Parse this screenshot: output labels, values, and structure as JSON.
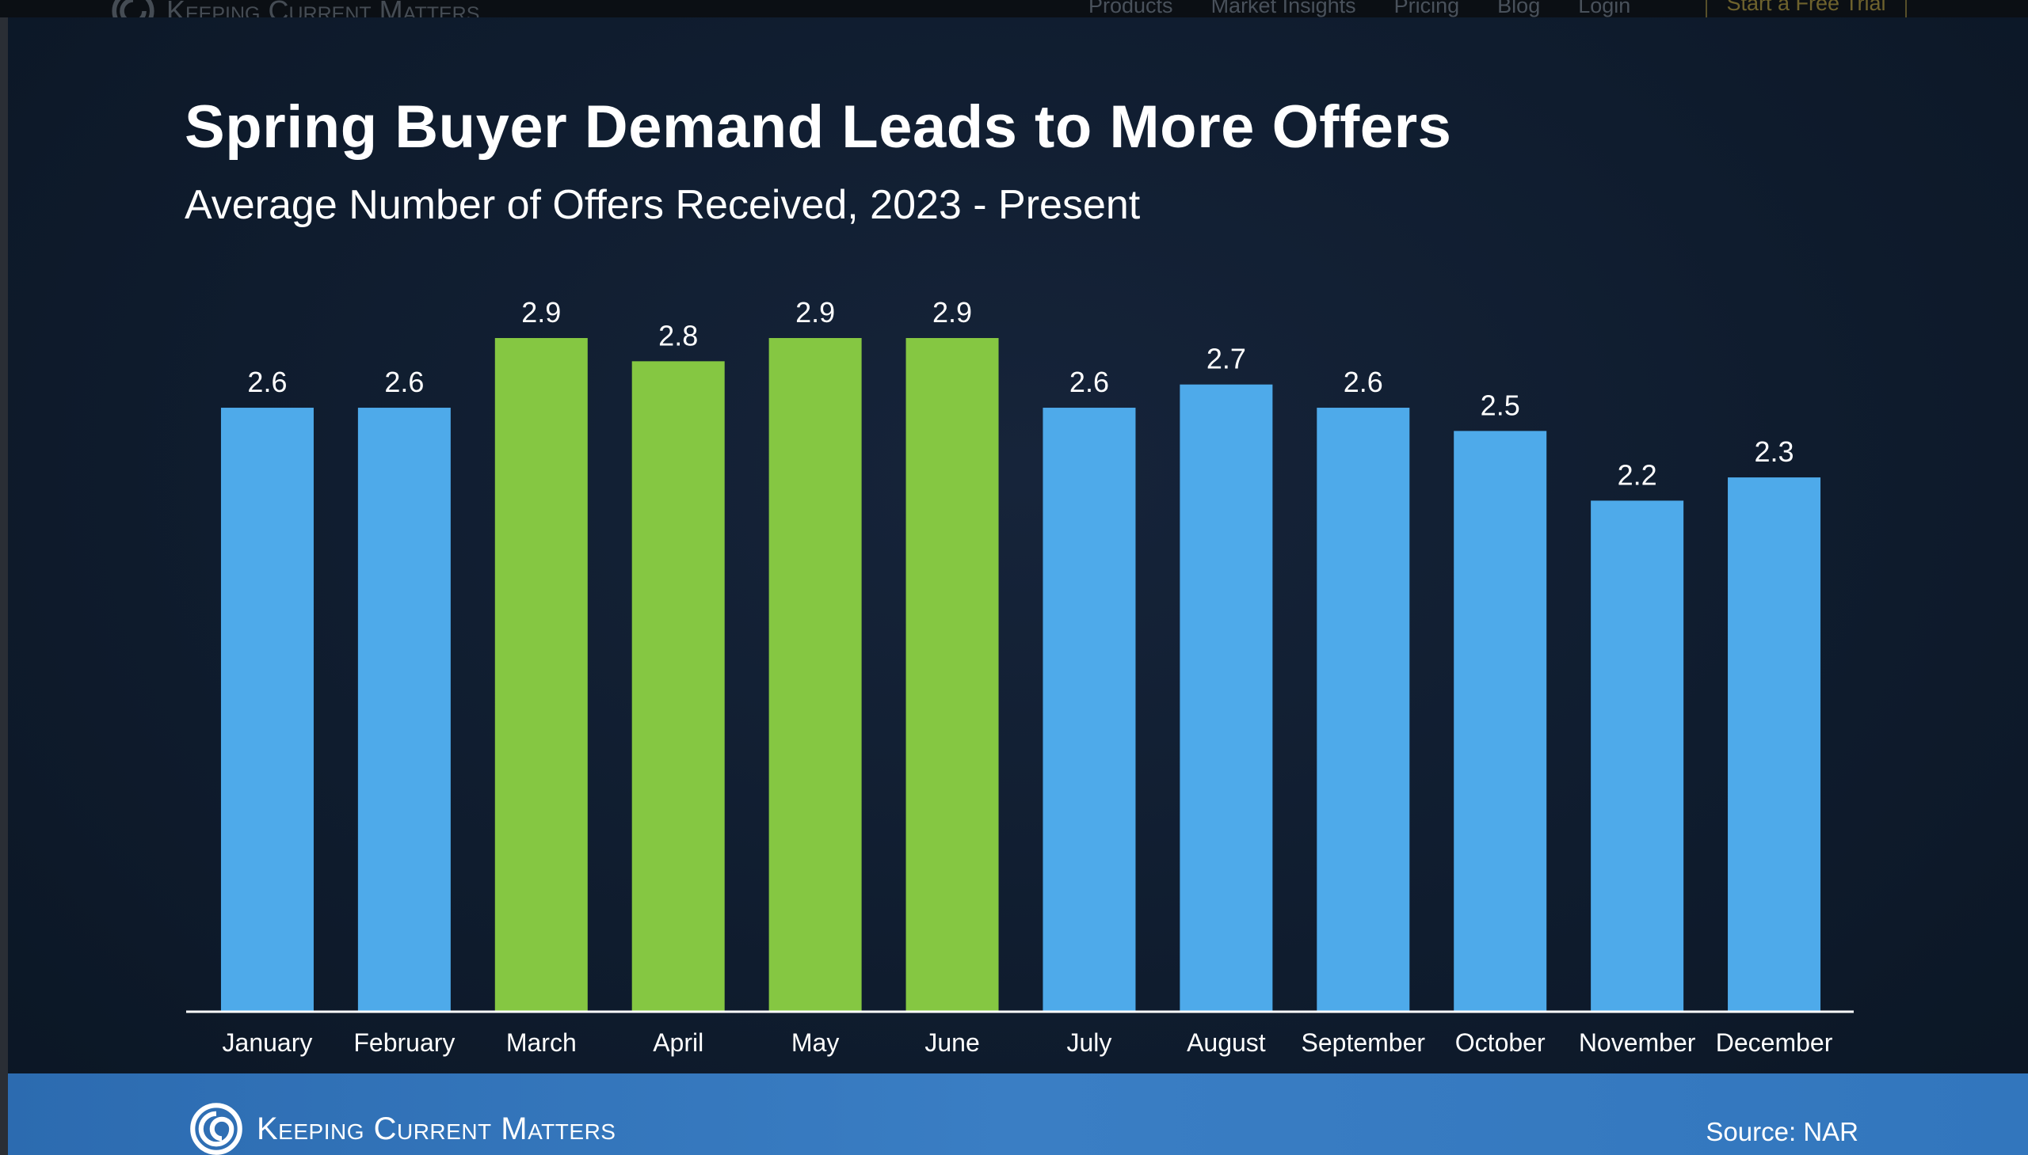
{
  "navbar": {
    "brand": "Keeping Current Matters",
    "links": [
      "Products",
      "Market Insights",
      "Pricing",
      "Blog",
      "Login"
    ],
    "cta": "Start a Free Trial"
  },
  "footer": {
    "brand": "Keeping Current Matters",
    "source": "Source: NAR"
  },
  "colors": {
    "blue_bar": "#4eaaea",
    "green_bar": "#85c742",
    "background": "#0f1c2e"
  },
  "chart_data": {
    "type": "bar",
    "title": "Spring Buyer Demand Leads to More Offers",
    "subtitle": "Average Number of Offers Received, 2023 - Present",
    "categories": [
      "January",
      "February",
      "March",
      "April",
      "May",
      "June",
      "July",
      "August",
      "September",
      "October",
      "November",
      "December"
    ],
    "values": [
      2.6,
      2.6,
      2.9,
      2.8,
      2.9,
      2.9,
      2.6,
      2.7,
      2.6,
      2.5,
      2.2,
      2.3
    ],
    "highlighted": [
      "March",
      "April",
      "May",
      "June"
    ],
    "data_labels": [
      "2.6",
      "2.6",
      "2.9",
      "2.8",
      "2.9",
      "2.9",
      "2.6",
      "2.7",
      "2.6",
      "2.5",
      "2.2",
      "2.3"
    ],
    "xlabel": "",
    "ylabel": "",
    "ylim": [
      0,
      2.9
    ],
    "grid": false,
    "legend": "none"
  }
}
